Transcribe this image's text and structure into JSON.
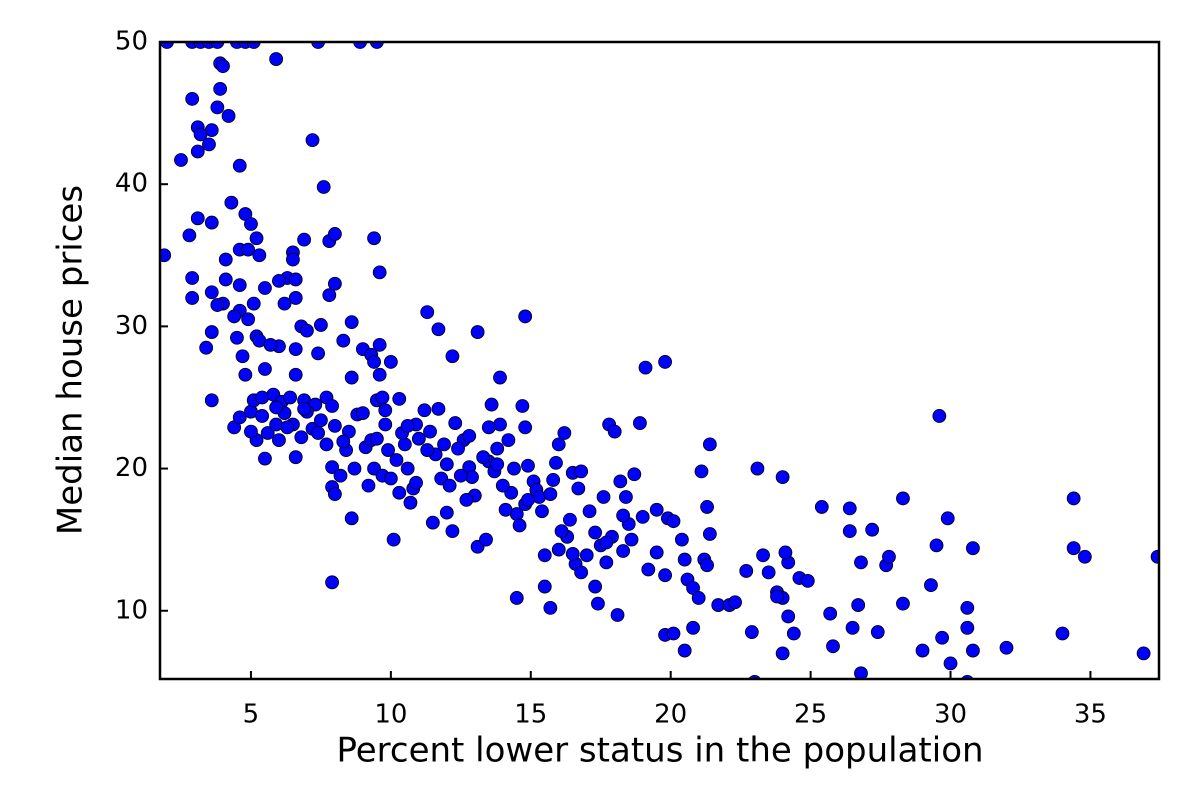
{
  "chart_data": {
    "type": "scatter",
    "xlabel": "Percent lower status in the population",
    "ylabel": "Median house prices",
    "color": "#0000ff",
    "edgecolor": "#000000",
    "xlim": [
      1.75,
      37.45
    ],
    "ylim": [
      5.2,
      50
    ],
    "xticks": [
      5,
      10,
      15,
      20,
      25,
      30,
      35
    ],
    "yticks": [
      10,
      20,
      30,
      40,
      50
    ],
    "x": [
      2.0,
      2.9,
      3.2,
      3.5,
      3.8,
      4.5,
      4.8,
      5.1,
      7.4,
      8.9,
      9.5,
      5.9,
      3.9,
      4.0,
      3.9,
      2.9,
      3.8,
      4.2,
      3.1,
      3.6,
      3.2,
      3.5,
      3.1,
      2.5,
      4.6,
      7.2,
      7.6,
      4.3,
      4.8,
      3.1,
      5.0,
      3.6,
      2.8,
      5.2,
      6.9,
      7.8,
      8.0,
      9.4,
      1.9,
      4.6,
      4.9,
      5.3,
      6.5,
      6.5,
      4.1,
      9.6,
      2.9,
      4.1,
      6.3,
      6.0,
      6.6,
      4.6,
      5.5,
      8.0,
      3.6,
      2.9,
      7.8,
      4.0,
      3.8,
      5.1,
      6.2,
      6.6,
      4.6,
      4.4,
      4.9,
      8.6,
      7.5,
      11.3,
      14.8,
      6.8,
      7.0,
      11.7,
      13.1,
      3.6,
      4.5,
      5.2,
      5.3,
      6.0,
      8.3,
      9.0,
      9.6,
      3.4,
      4.7,
      5.7,
      6.6,
      7.4,
      9.3,
      9.4,
      10.0,
      12.2,
      19.1,
      19.8,
      5.5,
      4.8,
      6.6,
      8.6,
      9.6,
      13.9,
      3.6,
      4.4,
      4.6,
      5.0,
      5.1,
      5.4,
      5.8,
      6.1,
      6.4,
      6.9,
      7.3,
      7.7,
      7.9,
      5.5,
      5.2,
      5.6,
      5.9,
      6.2,
      6.5,
      6.8,
      6.6,
      7.2,
      7.5,
      7.7,
      7.9,
      7.9,
      8.0,
      8.2,
      8.4,
      8.5,
      8.8,
      9.1,
      9.3,
      9.5,
      9.7,
      9.8,
      9.9,
      9.4,
      9.2,
      9.7,
      10.0,
      10.2,
      10.5,
      10.6,
      10.8,
      10.7,
      10.3,
      10.1,
      10.4,
      10.9,
      11.2,
      11.4,
      11.6,
      11.8,
      12.0,
      12.1,
      12.2,
      11.5,
      11.9,
      12.3,
      12.6,
      12.8,
      12.9,
      13.0,
      13.1,
      13.4,
      13.5,
      13.7,
      13.8,
      13.6,
      13.9,
      14.2,
      14.4,
      14.3,
      14.5,
      14.6,
      14.7,
      14.8,
      14.9,
      15.1,
      15.2,
      15.4,
      15.5,
      15.9,
      16.0,
      16.2,
      16.5,
      16.7,
      16.4,
      16.3,
      16.6,
      16.8,
      17.1,
      17.3,
      17.5,
      17.7,
      17.8,
      18.0,
      18.2,
      18.4,
      18.5,
      18.6,
      18.7,
      18.9,
      17.4,
      17.3,
      18.1,
      15.7,
      14.5,
      15.5,
      16.0,
      16.5,
      17.0,
      17.9,
      18.3,
      19.2,
      19.5,
      19.5,
      19.9,
      20.1,
      19.8,
      20.4,
      20.5,
      20.6,
      20.8,
      21.0,
      21.2,
      21.3,
      21.4,
      21.3,
      21.1,
      21.4,
      21.7,
      22.1,
      22.7,
      22.9,
      23.1,
      23.3,
      23.5,
      23.8,
      24.0,
      24.2,
      24.1,
      24.0,
      24.2,
      24.4,
      24.0,
      24.6,
      24.9,
      25.4,
      25.7,
      25.8,
      26.4,
      26.4,
      26.5,
      26.7,
      26.8,
      26.8,
      27.2,
      27.4,
      27.7,
      27.8,
      28.3,
      28.3,
      29.0,
      29.3,
      29.5,
      29.6,
      29.7,
      29.9,
      30.0,
      30.6,
      30.6,
      30.8,
      30.8,
      32.0,
      34.0,
      34.4,
      34.4,
      34.8,
      36.9,
      37.4,
      19.8,
      20.1,
      20.5,
      20.8,
      22.3,
      23.0,
      30.6,
      23.8,
      11.0,
      11.7,
      12.4,
      12.7,
      13.3,
      14.0,
      14.1,
      10.6,
      10.3,
      9.0,
      8.7,
      8.6,
      7.9,
      6.0,
      5.0,
      5.4,
      7.0,
      8.0,
      9.8,
      12.5,
      13.8,
      15.3,
      16.8,
      17.6,
      15.7,
      16.1,
      14.8,
      12.8,
      11.3,
      10.9,
      9.5,
      8.3,
      7.4,
      6.3,
      6.9,
      5.9,
      12.0,
      13.5,
      14.9,
      15.8,
      17.7,
      18.3,
      19.0
    ],
    "values": [
      50,
      50,
      50,
      50,
      50,
      50,
      50,
      50,
      50,
      50,
      50,
      48.8,
      48.5,
      48.3,
      46.7,
      46.0,
      45.4,
      44.8,
      44.0,
      43.8,
      43.5,
      42.8,
      42.3,
      41.7,
      41.3,
      43.1,
      39.8,
      38.7,
      37.9,
      37.6,
      37.2,
      37.3,
      36.4,
      36.2,
      36.1,
      36.0,
      36.5,
      36.2,
      35.0,
      35.4,
      35.4,
      35.0,
      35.2,
      34.7,
      34.7,
      33.8,
      33.4,
      33.3,
      33.4,
      33.2,
      33.3,
      32.9,
      32.7,
      33.0,
      32.4,
      32.0,
      32.2,
      31.6,
      31.5,
      31.6,
      31.6,
      32.0,
      31.1,
      30.7,
      30.5,
      30.3,
      30.1,
      31.0,
      30.7,
      30.0,
      29.7,
      29.8,
      29.6,
      29.6,
      29.2,
      29.3,
      29.0,
      28.6,
      29.0,
      28.4,
      28.7,
      28.5,
      27.9,
      28.7,
      28.4,
      28.1,
      28.0,
      27.5,
      27.5,
      27.9,
      27.1,
      27.5,
      27.0,
      26.6,
      26.6,
      26.4,
      26.6,
      26.4,
      24.8,
      22.9,
      23.6,
      24.0,
      24.8,
      25.0,
      25.2,
      24.7,
      25.0,
      24.8,
      24.5,
      25.0,
      24.4,
      20.7,
      22.0,
      22.5,
      23.1,
      23.9,
      23.1,
      22.2,
      20.8,
      22.8,
      23.4,
      21.7,
      20.1,
      18.7,
      18.2,
      19.5,
      21.3,
      22.6,
      23.8,
      21.5,
      22.0,
      24.8,
      25.0,
      23.1,
      21.3,
      20.0,
      18.8,
      19.5,
      19.3,
      20.6,
      21.7,
      20.0,
      18.6,
      17.6,
      18.3,
      15.0,
      22.5,
      23.1,
      24.1,
      22.6,
      21.0,
      19.3,
      20.3,
      18.8,
      15.6,
      16.2,
      21.7,
      23.2,
      22.0,
      20.1,
      19.4,
      18.1,
      14.5,
      15.0,
      20.5,
      19.8,
      21.4,
      24.5,
      23.1,
      22.0,
      20.0,
      18.3,
      16.8,
      16.0,
      24.4,
      22.9,
      20.2,
      19.1,
      18.5,
      17.0,
      13.9,
      20.4,
      21.7,
      22.5,
      19.7,
      18.6,
      16.4,
      15.2,
      13.3,
      12.7,
      17.0,
      15.5,
      14.6,
      13.4,
      23.1,
      22.6,
      19.1,
      18.0,
      16.1,
      15.0,
      19.6,
      23.2,
      10.5,
      11.7,
      9.7,
      10.2,
      10.9,
      11.7,
      14.3,
      14.0,
      13.9,
      15.2,
      14.2,
      12.9,
      14.1,
      17.1,
      16.5,
      16.3,
      12.5,
      15.0,
      13.6,
      12.2,
      11.6,
      10.9,
      13.6,
      13.2,
      15.4,
      17.3,
      19.8,
      21.7,
      10.4,
      10.4,
      12.8,
      8.5,
      20.0,
      13.9,
      12.7,
      11.3,
      10.9,
      13.4,
      14.1,
      19.4,
      9.6,
      8.4,
      7.0,
      12.3,
      12.1,
      17.3,
      9.8,
      7.5,
      17.2,
      15.6,
      8.8,
      10.4,
      5.6,
      13.4,
      15.7,
      8.5,
      13.2,
      13.8,
      17.9,
      10.5,
      7.2,
      11.8,
      14.6,
      23.7,
      8.1,
      16.5,
      6.3,
      10.2,
      8.8,
      7.2,
      14.4,
      7.4,
      8.4,
      17.9,
      14.4,
      13.8,
      7.0,
      13.8,
      8.3,
      8.4,
      7.2,
      8.8,
      10.6,
      5.0,
      5.0,
      11.0,
      22.1,
      24.2,
      21.4,
      17.8,
      20.8,
      18.8,
      17.1,
      23.0,
      24.9,
      23.9,
      20.0,
      16.5,
      12.0,
      22.0,
      22.6,
      23.7,
      24.0,
      23.0,
      24.1,
      19.5,
      20.3,
      18.0,
      19.8,
      18.0,
      18.2,
      15.6,
      17.5,
      22.3,
      21.3,
      19.0,
      22.1,
      21.9,
      22.5,
      22.9,
      24.2,
      24.3,
      16.9,
      22.9,
      17.8,
      19.2,
      14.8,
      16.7,
      16.6
    ]
  }
}
